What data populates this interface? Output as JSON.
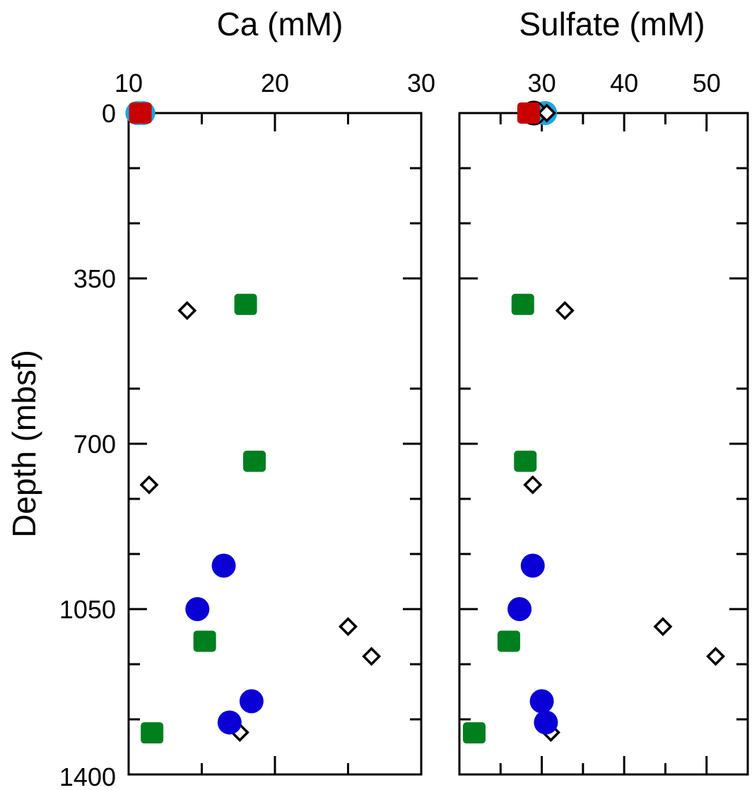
{
  "chart_data": [
    {
      "type": "scatter",
      "title": "Ca (mM)",
      "ylabel": "Depth (mbsf)",
      "xlim": [
        10,
        30
      ],
      "ylim": [
        1400,
        0
      ],
      "xticks": [
        "10",
        "20",
        "30"
      ],
      "yticks": [
        "0",
        "350",
        "700",
        "1050",
        "1400"
      ],
      "grid": false,
      "series": [
        {
          "marker": "circle",
          "color": "#1fa5e0",
          "points": [
            {
              "x": 10.6,
              "y": 0
            },
            {
              "x": 11.0,
              "y": 0
            }
          ]
        },
        {
          "marker": "diamond-open",
          "color": "#000000",
          "points": [
            {
              "x": 10.9,
              "y": 0
            },
            {
              "x": 14.0,
              "y": 418
            },
            {
              "x": 11.4,
              "y": 787
            },
            {
              "x": 25.0,
              "y": 1087
            },
            {
              "x": 26.6,
              "y": 1150
            },
            {
              "x": 17.6,
              "y": 1311
            }
          ]
        },
        {
          "marker": "square",
          "color": "#007f1f",
          "points": [
            {
              "x": 18.0,
              "y": 405
            },
            {
              "x": 18.6,
              "y": 737
            },
            {
              "x": 15.2,
              "y": 1118
            },
            {
              "x": 11.6,
              "y": 1312
            }
          ]
        },
        {
          "marker": "circle",
          "color": "#0a00d6",
          "points": [
            {
              "x": 16.5,
              "y": 958
            },
            {
              "x": 14.7,
              "y": 1050
            },
            {
              "x": 18.4,
              "y": 1245
            },
            {
              "x": 16.9,
              "y": 1290
            }
          ]
        },
        {
          "marker": "square",
          "color": "#c80000",
          "points": [
            {
              "x": 10.8,
              "y": 0
            }
          ]
        }
      ]
    },
    {
      "type": "scatter",
      "title": "Sulfate (mM)",
      "xlim": [
        20,
        55
      ],
      "ylim": [
        1400,
        0
      ],
      "xticks": [
        "30",
        "40",
        "50"
      ],
      "grid": false,
      "series": [
        {
          "marker": "circle",
          "color": "#1fa5e0",
          "points": [
            {
              "x": 29.2,
              "y": 0
            },
            {
              "x": 30.4,
              "y": 0
            }
          ]
        },
        {
          "marker": "circle-open",
          "color": "#000000",
          "points": [
            {
              "x": 29.0,
              "y": 0
            }
          ]
        },
        {
          "marker": "diamond",
          "color": "#7be31a",
          "points": [
            {
              "x": 30.6,
              "y": 0
            }
          ]
        },
        {
          "marker": "diamond-open",
          "color": "#000000",
          "points": [
            {
              "x": 30.6,
              "y": 0
            },
            {
              "x": 32.8,
              "y": 418
            },
            {
              "x": 28.9,
              "y": 787
            },
            {
              "x": 44.7,
              "y": 1087
            },
            {
              "x": 51.1,
              "y": 1150
            },
            {
              "x": 31.1,
              "y": 1311
            }
          ]
        },
        {
          "marker": "square",
          "color": "#007f1f",
          "points": [
            {
              "x": 27.7,
              "y": 405
            },
            {
              "x": 28.0,
              "y": 737
            },
            {
              "x": 26.0,
              "y": 1118
            },
            {
              "x": 21.8,
              "y": 1312
            }
          ]
        },
        {
          "marker": "circle",
          "color": "#0a00d6",
          "points": [
            {
              "x": 28.9,
              "y": 958
            },
            {
              "x": 27.3,
              "y": 1050
            },
            {
              "x": 30.0,
              "y": 1245
            },
            {
              "x": 30.5,
              "y": 1290
            }
          ]
        },
        {
          "marker": "square",
          "color": "#c80000",
          "points": [
            {
              "x": 28.4,
              "y": 0
            }
          ]
        }
      ]
    }
  ]
}
